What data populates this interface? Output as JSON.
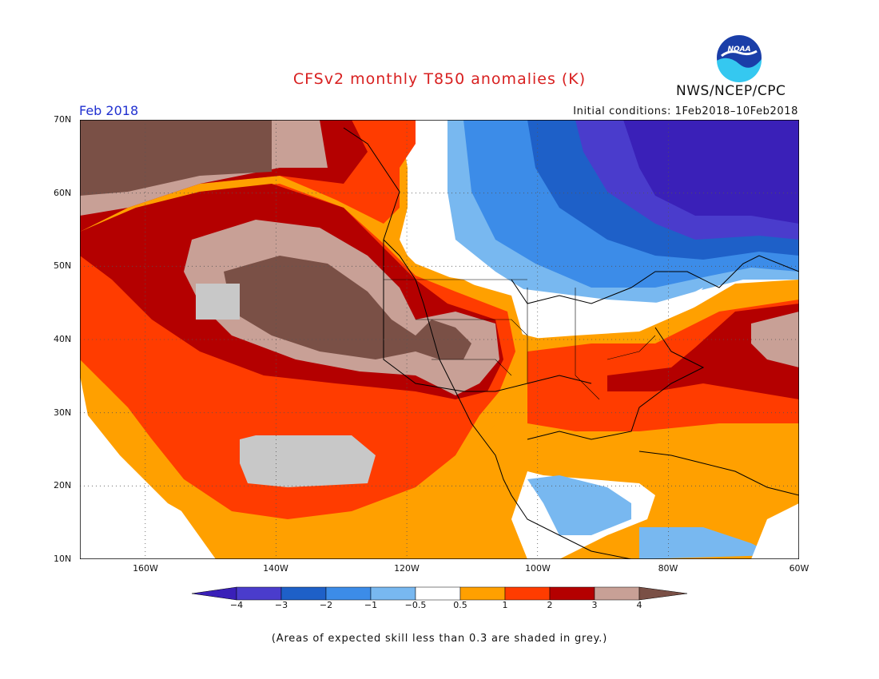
{
  "header": {
    "title": "CFSv2 monthly T850 anomalies (K)",
    "agency": "NWS/NCEP/CPC",
    "logo_text": "NOAA",
    "month": "Feb 2018",
    "initial_conditions": "Initial conditions: 1Feb2018–10Feb2018"
  },
  "map": {
    "lat_labels": [
      "70N",
      "60N",
      "50N",
      "40N",
      "30N",
      "20N",
      "10N"
    ],
    "lon_labels": [
      "160W",
      "140W",
      "120W",
      "100W",
      "80W",
      "60W"
    ]
  },
  "colorbar": {
    "labels": [
      "−4",
      "−3",
      "−2",
      "−1",
      "−0.5",
      "0.5",
      "1",
      "2",
      "3",
      "4"
    ],
    "colors": [
      "#3a20b8",
      "#4a3ccc",
      "#1e60c8",
      "#3c8ce8",
      "#78b8f0",
      "#ffffff",
      "#ffa000",
      "#ff3c00",
      "#b40000",
      "#c8a096",
      "#7a5046"
    ]
  },
  "footnote": "(Areas of expected skill less than 0.3 are shaded in grey.)"
}
